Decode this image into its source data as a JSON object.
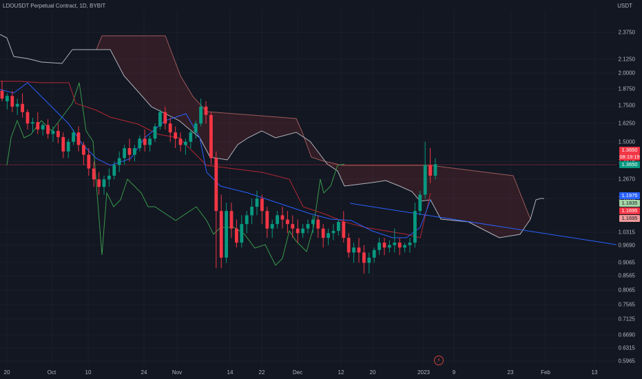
{
  "header": {
    "title": "LDOUSDT Perpetual Contract, 1D, BYBIT",
    "currency": "USDT"
  },
  "chart_data": {
    "type": "candlestick",
    "title": "LDOUSDT Perpetual Contract, 1D, BYBIT",
    "y_ticks": [
      "2.3750",
      "2.1250",
      "2.0000",
      "1.8750",
      "1.7500",
      "1.6250",
      "1.5000",
      "1.3815",
      "1.2670",
      "1.1515",
      "1.0315",
      "0.9690",
      "0.9065",
      "0.8565",
      "0.8065",
      "0.7565",
      "0.7125",
      "0.6690",
      "0.6315",
      "0.5965"
    ],
    "x_ticks": [
      "20",
      "Oct",
      "10",
      "24",
      "Nov",
      "14",
      "22",
      "Dec",
      "12",
      "20",
      "2023",
      "9",
      "23",
      "Feb",
      "13"
    ],
    "price_tags": [
      {
        "label": "1.3650",
        "color": "#f23645"
      },
      {
        "label": "08:19:19",
        "color": "#f23645"
      },
      {
        "label": "1.3650",
        "color": "#089981"
      },
      {
        "label": "1.1975",
        "color": "#2962ff"
      },
      {
        "label": "1.1835",
        "color": "#a5d6a7"
      },
      {
        "label": "1.1695",
        "color": "#f23645"
      },
      {
        "label": "1.1695",
        "color": "#ef9a9a"
      }
    ],
    "last_price": 1.365,
    "scale": "log",
    "y_range": [
      0.58,
      2.6
    ],
    "candles": [
      [
        1.86,
        1.94,
        1.8,
        1.78
      ],
      [
        1.78,
        1.84,
        1.82,
        1.72
      ],
      [
        1.82,
        1.86,
        1.74,
        1.7
      ],
      [
        1.74,
        1.8,
        1.76,
        1.68
      ],
      [
        1.76,
        1.84,
        1.7,
        1.66
      ],
      [
        1.7,
        1.72,
        1.62,
        1.58
      ],
      [
        1.62,
        1.66,
        1.63,
        1.56
      ],
      [
        1.63,
        1.7,
        1.58,
        1.55
      ],
      [
        1.58,
        1.62,
        1.61,
        1.54
      ],
      [
        1.61,
        1.65,
        1.55,
        1.52
      ],
      [
        1.55,
        1.6,
        1.57,
        1.5
      ],
      [
        1.57,
        1.62,
        1.53,
        1.49
      ],
      [
        1.53,
        1.56,
        1.44,
        1.4
      ],
      [
        1.44,
        1.52,
        1.5,
        1.4
      ],
      [
        1.5,
        1.58,
        1.56,
        1.48
      ],
      [
        1.56,
        1.6,
        1.48,
        1.44
      ],
      [
        1.48,
        1.5,
        1.42,
        1.36
      ],
      [
        1.42,
        1.46,
        1.34,
        1.3
      ],
      [
        1.34,
        1.38,
        1.28,
        1.24
      ],
      [
        1.28,
        1.32,
        1.24,
        1.2
      ],
      [
        1.24,
        1.3,
        1.28,
        1.2
      ],
      [
        1.28,
        1.34,
        1.3,
        1.24
      ],
      [
        1.3,
        1.38,
        1.36,
        1.28
      ],
      [
        1.36,
        1.44,
        1.4,
        1.32
      ],
      [
        1.4,
        1.48,
        1.46,
        1.36
      ],
      [
        1.46,
        1.52,
        1.42,
        1.38
      ],
      [
        1.42,
        1.48,
        1.46,
        1.38
      ],
      [
        1.46,
        1.54,
        1.52,
        1.44
      ],
      [
        1.52,
        1.58,
        1.48,
        1.44
      ],
      [
        1.48,
        1.54,
        1.52,
        1.44
      ],
      [
        1.52,
        1.62,
        1.6,
        1.5
      ],
      [
        1.6,
        1.72,
        1.7,
        1.58
      ],
      [
        1.7,
        1.74,
        1.62,
        1.58
      ],
      [
        1.62,
        1.66,
        1.56,
        1.5
      ],
      [
        1.56,
        1.6,
        1.52,
        1.46
      ],
      [
        1.52,
        1.56,
        1.48,
        1.44
      ],
      [
        1.48,
        1.52,
        1.5,
        1.42
      ],
      [
        1.5,
        1.58,
        1.56,
        1.46
      ],
      [
        1.56,
        1.64,
        1.62,
        1.52
      ],
      [
        1.62,
        1.8,
        1.74,
        1.6
      ],
      [
        1.74,
        1.78,
        1.68,
        1.62
      ],
      [
        1.68,
        1.7,
        1.4,
        1.36
      ],
      [
        1.4,
        1.44,
        1.12,
        0.88
      ],
      [
        1.12,
        1.2,
        0.92,
        0.88
      ],
      [
        0.92,
        1.16,
        1.12,
        0.9
      ],
      [
        1.12,
        1.16,
        1.04,
        1.0
      ],
      [
        1.04,
        1.08,
        0.98,
        0.96
      ],
      [
        0.98,
        1.1,
        1.06,
        0.96
      ],
      [
        1.06,
        1.12,
        1.1,
        1.02
      ],
      [
        1.1,
        1.18,
        1.14,
        1.06
      ],
      [
        1.14,
        1.22,
        1.18,
        1.1
      ],
      [
        1.18,
        1.2,
        1.12,
        1.06
      ],
      [
        1.12,
        1.14,
        1.04,
        1.0
      ],
      [
        1.04,
        1.08,
        1.06,
        1.0
      ],
      [
        1.06,
        1.12,
        1.1,
        1.04
      ],
      [
        1.1,
        1.14,
        1.08,
        1.04
      ],
      [
        1.08,
        1.12,
        1.06,
        1.02
      ],
      [
        1.06,
        1.1,
        1.04,
        1.0
      ],
      [
        1.04,
        1.08,
        1.02,
        0.98
      ],
      [
        1.02,
        1.06,
        1.04,
        1.0
      ],
      [
        1.04,
        1.08,
        1.06,
        1.02
      ],
      [
        1.06,
        1.1,
        1.08,
        1.02
      ],
      [
        1.08,
        1.1,
        1.04,
        1.0
      ],
      [
        1.04,
        1.06,
        1.0,
        0.96
      ],
      [
        1.0,
        1.04,
        1.02,
        0.97
      ],
      [
        1.02,
        1.06,
        1.03,
        0.99
      ],
      [
        1.03,
        1.08,
        1.07,
        1.01
      ],
      [
        1.07,
        1.12,
        1.0,
        0.98
      ],
      [
        1.0,
        1.02,
        0.94,
        0.92
      ],
      [
        0.94,
        0.98,
        0.96,
        0.9
      ],
      [
        0.96,
        1.0,
        0.94,
        0.9
      ],
      [
        0.94,
        0.97,
        0.9,
        0.86
      ],
      [
        0.9,
        0.94,
        0.92,
        0.86
      ],
      [
        0.92,
        0.96,
        0.95,
        0.9
      ],
      [
        0.95,
        1.0,
        0.98,
        0.93
      ],
      [
        0.98,
        1.0,
        0.96,
        0.93
      ],
      [
        0.96,
        0.99,
        0.97,
        0.94
      ],
      [
        0.97,
        1.04,
        0.98,
        0.94
      ],
      [
        0.98,
        1.0,
        0.96,
        0.93
      ],
      [
        0.96,
        0.98,
        0.97,
        0.94
      ],
      [
        0.97,
        1.0,
        0.98,
        0.94
      ],
      [
        0.98,
        1.16,
        1.12,
        0.96
      ],
      [
        1.12,
        1.22,
        1.2,
        1.1
      ],
      [
        1.2,
        1.5,
        1.36,
        1.18
      ],
      [
        1.36,
        1.46,
        1.3,
        1.26
      ],
      [
        1.3,
        1.4,
        1.365,
        1.28
      ]
    ]
  }
}
